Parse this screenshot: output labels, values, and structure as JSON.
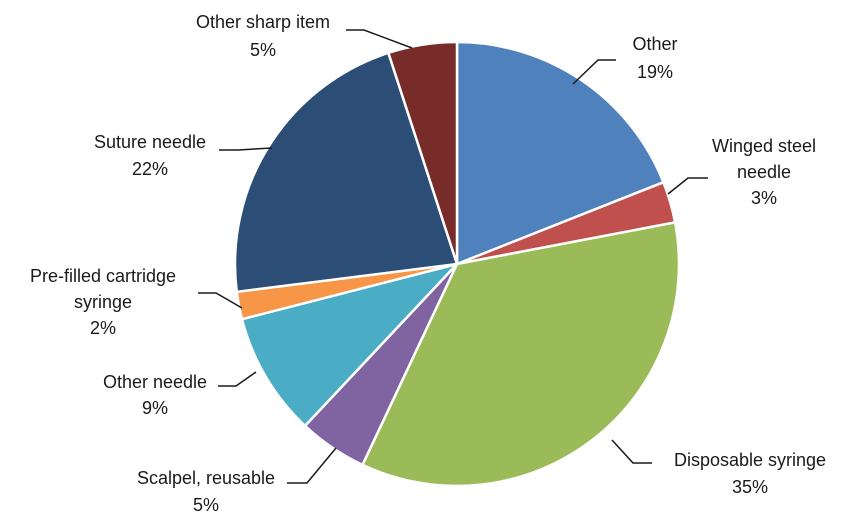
{
  "chart_data": {
    "type": "pie",
    "title": "",
    "start_angle_deg": 0,
    "direction": "clockwise",
    "slices": [
      {
        "label": [
          "Other"
        ],
        "value": 19,
        "display": "19%",
        "color": "#4f81bd"
      },
      {
        "label": [
          "Winged steel",
          "needle"
        ],
        "value": 3,
        "display": "3%",
        "color": "#c0504d"
      },
      {
        "label": [
          "Disposable syringe"
        ],
        "value": 35,
        "display": "35%",
        "color": "#9bbb59"
      },
      {
        "label": [
          "Scalpel, reusable"
        ],
        "value": 5,
        "display": "5%",
        "color": "#8064a2"
      },
      {
        "label": [
          "Other needle"
        ],
        "value": 9,
        "display": "9%",
        "color": "#4bacc6"
      },
      {
        "label": [
          "Pre-filled cartridge",
          "syringe"
        ],
        "value": 2,
        "display": "2%",
        "color": "#f79646"
      },
      {
        "label": [
          "Suture needle"
        ],
        "value": 22,
        "display": "22%",
        "color": "#2c4d75"
      },
      {
        "label": [
          "Other sharp item"
        ],
        "value": 5,
        "display": "5%",
        "color": "#772c2a"
      }
    ]
  }
}
